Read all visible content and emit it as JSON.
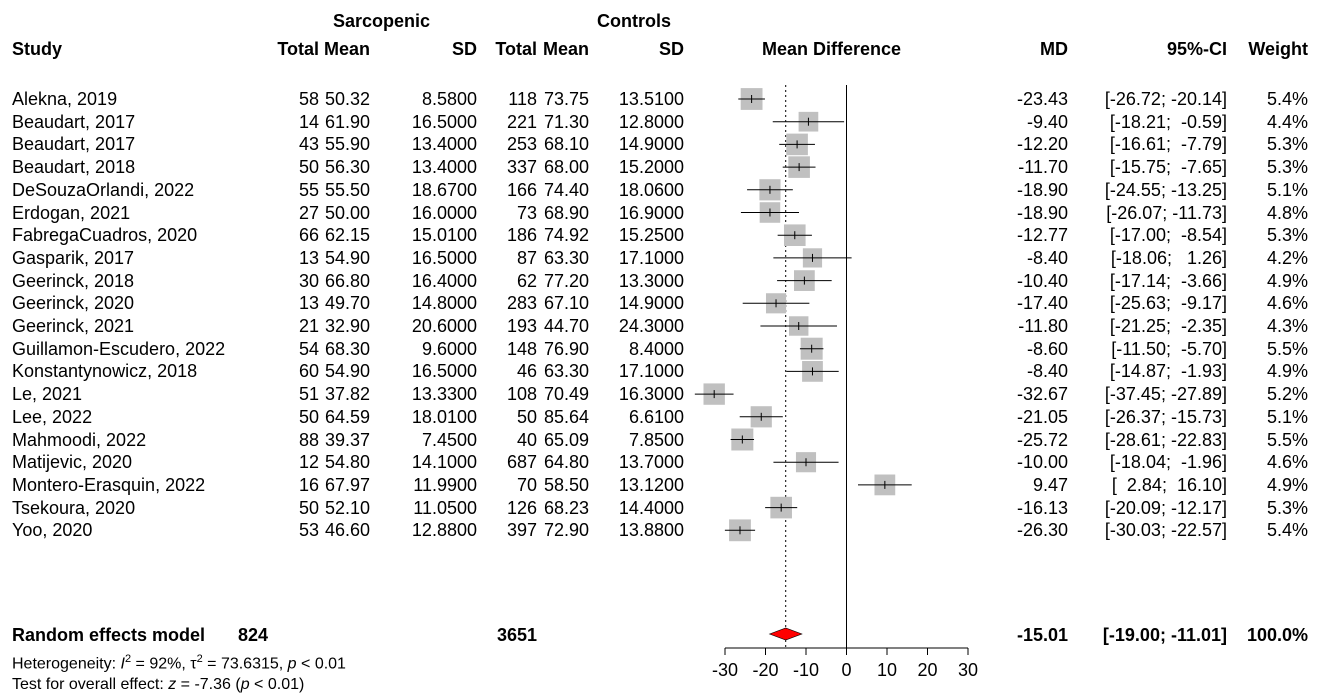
{
  "header": {
    "group1": "Sarcopenic",
    "group2": "Controls",
    "study": "Study",
    "total1": "Total",
    "mean1": "Mean",
    "sd1": "SD",
    "total2": "Total",
    "mean2": "Mean",
    "sd2": "SD",
    "plot": "Mean Difference",
    "md": "MD",
    "ci": "95%-CI",
    "weight": "Weight"
  },
  "studies": [
    {
      "name": "Alekna, 2019",
      "n1": "58",
      "m1": "50.32",
      "sd1": "8.5800",
      "n2": "118",
      "m2": "73.75",
      "sd2": "13.5100",
      "md": "-23.43",
      "ci": "[-26.72; -20.14]",
      "w": "5.4%"
    },
    {
      "name": "Beaudart, 2017",
      "n1": "14",
      "m1": "61.90",
      "sd1": "16.5000",
      "n2": "221",
      "m2": "71.30",
      "sd2": "12.8000",
      "md": "-9.40",
      "ci": "[-18.21;  -0.59]",
      "w": "4.4%"
    },
    {
      "name": "Beaudart, 2017",
      "n1": "43",
      "m1": "55.90",
      "sd1": "13.4000",
      "n2": "253",
      "m2": "68.10",
      "sd2": "14.9000",
      "md": "-12.20",
      "ci": "[-16.61;  -7.79]",
      "w": "5.3%"
    },
    {
      "name": "Beaudart, 2018",
      "n1": "50",
      "m1": "56.30",
      "sd1": "13.4000",
      "n2": "337",
      "m2": "68.00",
      "sd2": "15.2000",
      "md": "-11.70",
      "ci": "[-15.75;  -7.65]",
      "w": "5.3%"
    },
    {
      "name": "DeSouzaOrlandi, 2022",
      "n1": "55",
      "m1": "55.50",
      "sd1": "18.6700",
      "n2": "166",
      "m2": "74.40",
      "sd2": "18.0600",
      "md": "-18.90",
      "ci": "[-24.55; -13.25]",
      "w": "5.1%"
    },
    {
      "name": "Erdogan, 2021",
      "n1": "27",
      "m1": "50.00",
      "sd1": "16.0000",
      "n2": "73",
      "m2": "68.90",
      "sd2": "16.9000",
      "md": "-18.90",
      "ci": "[-26.07; -11.73]",
      "w": "4.8%"
    },
    {
      "name": "FabregaCuadros, 2020",
      "n1": "66",
      "m1": "62.15",
      "sd1": "15.0100",
      "n2": "186",
      "m2": "74.92",
      "sd2": "15.2500",
      "md": "-12.77",
      "ci": "[-17.00;  -8.54]",
      "w": "5.3%"
    },
    {
      "name": "Gasparik, 2017",
      "n1": "13",
      "m1": "54.90",
      "sd1": "16.5000",
      "n2": "87",
      "m2": "63.30",
      "sd2": "17.1000",
      "md": "-8.40",
      "ci": "[-18.06;   1.26]",
      "w": "4.2%"
    },
    {
      "name": "Geerinck, 2018",
      "n1": "30",
      "m1": "66.80",
      "sd1": "16.4000",
      "n2": "62",
      "m2": "77.20",
      "sd2": "13.3000",
      "md": "-10.40",
      "ci": "[-17.14;  -3.66]",
      "w": "4.9%"
    },
    {
      "name": "Geerinck, 2020",
      "n1": "13",
      "m1": "49.70",
      "sd1": "14.8000",
      "n2": "283",
      "m2": "67.10",
      "sd2": "14.9000",
      "md": "-17.40",
      "ci": "[-25.63;  -9.17]",
      "w": "4.6%"
    },
    {
      "name": "Geerinck, 2021",
      "n1": "21",
      "m1": "32.90",
      "sd1": "20.6000",
      "n2": "193",
      "m2": "44.70",
      "sd2": "24.3000",
      "md": "-11.80",
      "ci": "[-21.25;  -2.35]",
      "w": "4.3%"
    },
    {
      "name": "Guillamon-Escudero, 2022",
      "n1": "54",
      "m1": "68.30",
      "sd1": "9.6000",
      "n2": "148",
      "m2": "76.90",
      "sd2": "8.4000",
      "md": "-8.60",
      "ci": "[-11.50;  -5.70]",
      "w": "5.5%"
    },
    {
      "name": "Konstantynowicz, 2018",
      "n1": "60",
      "m1": "54.90",
      "sd1": "16.5000",
      "n2": "46",
      "m2": "63.30",
      "sd2": "17.1000",
      "md": "-8.40",
      "ci": "[-14.87;  -1.93]",
      "w": "4.9%"
    },
    {
      "name": "Le, 2021",
      "n1": "51",
      "m1": "37.82",
      "sd1": "13.3300",
      "n2": "108",
      "m2": "70.49",
      "sd2": "16.3000",
      "md": "-32.67",
      "ci": "[-37.45; -27.89]",
      "w": "5.2%"
    },
    {
      "name": "Lee, 2022",
      "n1": "50",
      "m1": "64.59",
      "sd1": "18.0100",
      "n2": "50",
      "m2": "85.64",
      "sd2": "6.6100",
      "md": "-21.05",
      "ci": "[-26.37; -15.73]",
      "w": "5.1%"
    },
    {
      "name": "Mahmoodi, 2022",
      "n1": "88",
      "m1": "39.37",
      "sd1": "7.4500",
      "n2": "40",
      "m2": "65.09",
      "sd2": "7.8500",
      "md": "-25.72",
      "ci": "[-28.61; -22.83]",
      "w": "5.5%"
    },
    {
      "name": "Matijevic, 2020",
      "n1": "12",
      "m1": "54.80",
      "sd1": "14.1000",
      "n2": "687",
      "m2": "64.80",
      "sd2": "13.7000",
      "md": "-10.00",
      "ci": "[-18.04;  -1.96]",
      "w": "4.6%"
    },
    {
      "name": "Montero-Erasquin, 2022",
      "n1": "16",
      "m1": "67.97",
      "sd1": "11.9900",
      "n2": "70",
      "m2": "58.50",
      "sd2": "13.1200",
      "md": "9.47",
      "ci": "[  2.84;  16.10]",
      "w": "4.9%"
    },
    {
      "name": "Tsekoura, 2020",
      "n1": "50",
      "m1": "52.10",
      "sd1": "11.0500",
      "n2": "126",
      "m2": "68.23",
      "sd2": "14.4000",
      "md": "-16.13",
      "ci": "[-20.09; -12.17]",
      "w": "5.3%"
    },
    {
      "name": "Yoo, 2020",
      "n1": "53",
      "m1": "46.60",
      "sd1": "12.8800",
      "n2": "397",
      "m2": "72.90",
      "sd2": "13.8800",
      "md": "-26.30",
      "ci": "[-30.03; -22.57]",
      "w": "5.4%"
    }
  ],
  "summary": {
    "label": "Random effects model",
    "n1": "824",
    "n2": "3651",
    "md": "-15.01",
    "ci": "[-19.00; -11.01]",
    "w": "100.0%"
  },
  "heterogeneity": {
    "prefix": "Heterogeneity: ",
    "i2_sym": "I",
    "i2_exp": "2",
    "i2_val": " = 92%, ",
    "tau_sym": "τ",
    "tau_exp": "2",
    "tau_val": " = 73.6315, ",
    "p_sym": "p",
    "p_val": " < 0.01"
  },
  "overall_test": {
    "prefix": "Test for overall effect: ",
    "z_sym": "z",
    "z_val": " = -7.36 (",
    "p_sym": "p",
    "p_val": " < 0.01)"
  },
  "colors": {
    "box": "#c0c0c0",
    "diamond": "#ff0000",
    "line": "#000000"
  },
  "chart_data": {
    "type": "forest",
    "xlabel": "",
    "xlim": [
      -30,
      30
    ],
    "ticks": [
      -30,
      -20,
      -10,
      0,
      10,
      20,
      30
    ],
    "tick_labels": [
      "-30",
      "-20",
      "-10",
      "0",
      "10",
      "20",
      "30"
    ],
    "null_line": 0,
    "pooled_line": -15.01,
    "points": [
      {
        "md": -23.43,
        "lo": -26.72,
        "hi": -20.14
      },
      {
        "md": -9.4,
        "lo": -18.21,
        "hi": -0.59
      },
      {
        "md": -12.2,
        "lo": -16.61,
        "hi": -7.79
      },
      {
        "md": -11.7,
        "lo": -15.75,
        "hi": -7.65
      },
      {
        "md": -18.9,
        "lo": -24.55,
        "hi": -13.25
      },
      {
        "md": -18.9,
        "lo": -26.07,
        "hi": -11.73
      },
      {
        "md": -12.77,
        "lo": -17.0,
        "hi": -8.54
      },
      {
        "md": -8.4,
        "lo": -18.06,
        "hi": 1.26
      },
      {
        "md": -10.4,
        "lo": -17.14,
        "hi": -3.66
      },
      {
        "md": -17.4,
        "lo": -25.63,
        "hi": -9.17
      },
      {
        "md": -11.8,
        "lo": -21.25,
        "hi": -2.35
      },
      {
        "md": -8.6,
        "lo": -11.5,
        "hi": -5.7
      },
      {
        "md": -8.4,
        "lo": -14.87,
        "hi": -1.93
      },
      {
        "md": -32.67,
        "lo": -37.45,
        "hi": -27.89
      },
      {
        "md": -21.05,
        "lo": -26.37,
        "hi": -15.73
      },
      {
        "md": -25.72,
        "lo": -28.61,
        "hi": -22.83
      },
      {
        "md": -10.0,
        "lo": -18.04,
        "hi": -1.96
      },
      {
        "md": 9.47,
        "lo": 2.84,
        "hi": 16.1
      },
      {
        "md": -16.13,
        "lo": -20.09,
        "hi": -12.17
      },
      {
        "md": -26.3,
        "lo": -30.03,
        "hi": -22.57
      }
    ],
    "summary": {
      "md": -15.01,
      "lo": -19.0,
      "hi": -11.01
    }
  }
}
